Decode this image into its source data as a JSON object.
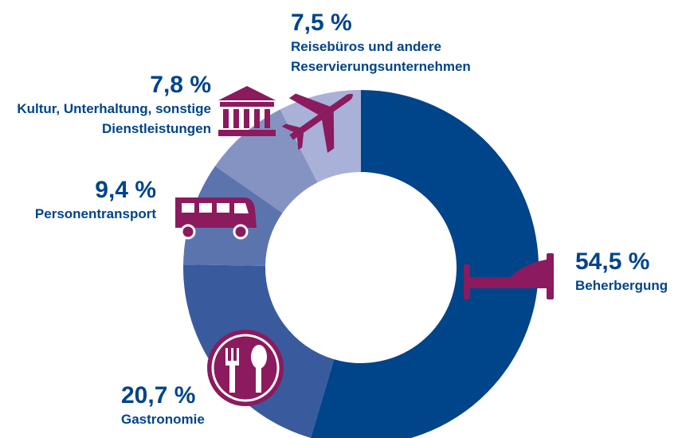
{
  "chart_data": {
    "type": "donut",
    "categories": [
      "Beherbergung",
      "Gastronomie",
      "Personentransport",
      "Kultur, Unterhaltung, sonstige Dienstleistungen",
      "Reisebüros und andere Reservierungsunternehmen"
    ],
    "values": [
      54.5,
      20.7,
      9.4,
      7.8,
      7.5
    ],
    "value_labels": [
      "54,5 %",
      "20,7 %",
      "9,4 %",
      "7,8 %",
      "7,5 %"
    ],
    "colors": [
      "#004489",
      "#3a5a9e",
      "#5c74ae",
      "#8593c3",
      "#a9b1d8"
    ]
  }
}
